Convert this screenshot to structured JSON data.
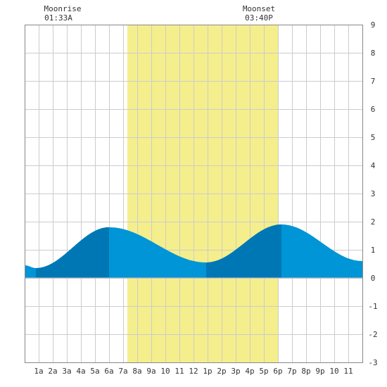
{
  "moon": {
    "rise_label": "Moonrise",
    "rise_time": "01:33A",
    "set_label": "Moonset",
    "set_time": "03:40P"
  },
  "chart_data": {
    "type": "area",
    "title": "",
    "xlabel": "",
    "ylabel": "",
    "x_unit": "hour of day",
    "xlim": [
      0,
      24
    ],
    "ylim": [
      -3,
      9
    ],
    "grid": true,
    "x_tick_labels": [
      {
        "hour": 1,
        "label": "1a"
      },
      {
        "hour": 2,
        "label": "2a"
      },
      {
        "hour": 3,
        "label": "3a"
      },
      {
        "hour": 4,
        "label": "4a"
      },
      {
        "hour": 5,
        "label": "5a"
      },
      {
        "hour": 6,
        "label": "6a"
      },
      {
        "hour": 7,
        "label": "7a"
      },
      {
        "hour": 8,
        "label": "8a"
      },
      {
        "hour": 9,
        "label": "9a"
      },
      {
        "hour": 10,
        "label": "10"
      },
      {
        "hour": 11,
        "label": "11"
      },
      {
        "hour": 12,
        "label": "12"
      },
      {
        "hour": 13,
        "label": "1p"
      },
      {
        "hour": 14,
        "label": "2p"
      },
      {
        "hour": 15,
        "label": "3p"
      },
      {
        "hour": 16,
        "label": "4p"
      },
      {
        "hour": 17,
        "label": "5p"
      },
      {
        "hour": 18,
        "label": "6p"
      },
      {
        "hour": 19,
        "label": "7p"
      },
      {
        "hour": 20,
        "label": "8p"
      },
      {
        "hour": 21,
        "label": "9p"
      },
      {
        "hour": 22,
        "label": "10"
      },
      {
        "hour": 23,
        "label": "11"
      }
    ],
    "y_ticks": [
      -3,
      -2,
      -1,
      0,
      1,
      2,
      3,
      4,
      5,
      6,
      7,
      8,
      9
    ],
    "daylight": {
      "start": 7.3,
      "end": 18.0
    },
    "tide": {
      "extrema": [
        {
          "type": "low",
          "hour": 0.8,
          "height": 0.35
        },
        {
          "type": "high",
          "hour": 6.0,
          "height": 1.8
        },
        {
          "type": "low",
          "hour": 12.9,
          "height": 0.55
        },
        {
          "type": "high",
          "hour": 18.25,
          "height": 1.9
        }
      ],
      "end": {
        "hour": 24,
        "height": 0.6
      },
      "start_height": 0.45
    },
    "colors": {
      "background": "#ffffff",
      "grid": "#cccccc",
      "daylight": "#f5ee8c",
      "tide_fill": "#0095d6",
      "rising_fill": "#0077b5",
      "axis_text": "#333333"
    }
  }
}
